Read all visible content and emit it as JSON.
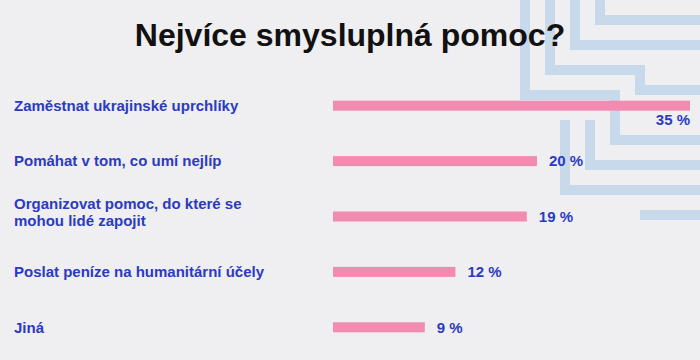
{
  "chart_data": {
    "type": "bar",
    "orientation": "horizontal",
    "title": "Nejvíce smysluplná pomoc?",
    "categories": [
      "Zaměstnat ukrajinské uprchlíky",
      "Pomáhat v tom, co umí nejlíp",
      "Organizovat pomoc, do které se mohou lidé zapojit",
      "Poslat peníze na humanitární účely",
      "Jiná"
    ],
    "values": [
      35,
      20,
      19,
      12,
      9
    ],
    "value_labels": [
      "35 %",
      "20 %",
      "19 %",
      "12 %",
      "9 %"
    ],
    "color": "#f28bb0",
    "xlim": [
      0,
      35
    ],
    "data_labels": true,
    "tick_labels": "y",
    "grid": false
  }
}
